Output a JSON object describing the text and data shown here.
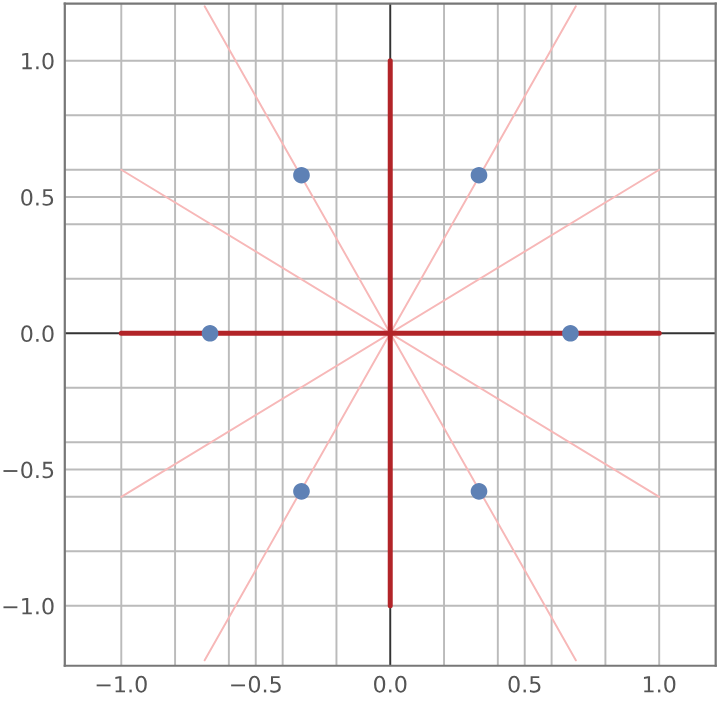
{
  "chart_data": {
    "type": "scatter",
    "xlim": [
      -1.21,
      1.21
    ],
    "ylim": [
      -1.22,
      1.21
    ],
    "xticks": [
      {
        "value": -1.0,
        "label": "−1.0"
      },
      {
        "value": -0.8,
        "label": null
      },
      {
        "value": -0.6,
        "label": null
      },
      {
        "value": -0.5,
        "label": "−0.5"
      },
      {
        "value": -0.4,
        "label": null
      },
      {
        "value": -0.2,
        "label": null
      },
      {
        "value": 0,
        "label": "0.0"
      },
      {
        "value": 0.2,
        "label": null
      },
      {
        "value": 0.4,
        "label": null
      },
      {
        "value": 0.5,
        "label": "0.5"
      },
      {
        "value": 0.6,
        "label": null
      },
      {
        "value": 0.8,
        "label": null
      },
      {
        "value": 1.0,
        "label": "1.0"
      }
    ],
    "yticks": [
      {
        "value": -1.0,
        "label": "−1.0"
      },
      {
        "value": -0.8,
        "label": null
      },
      {
        "value": -0.6,
        "label": null
      },
      {
        "value": -0.5,
        "label": "−0.5"
      },
      {
        "value": -0.4,
        "label": null
      },
      {
        "value": -0.2,
        "label": null
      },
      {
        "value": 0,
        "label": "0.0"
      },
      {
        "value": 0.2,
        "label": null
      },
      {
        "value": 0.4,
        "label": null
      },
      {
        "value": 0.5,
        "label": "0.5"
      },
      {
        "value": 0.6,
        "label": null
      },
      {
        "value": 0.8,
        "label": null
      },
      {
        "value": 1.0,
        "label": "1.0"
      }
    ],
    "grid": true,
    "series": [
      {
        "type": "line",
        "color": "#f7b8b8",
        "x": [
          -1.0,
          1.0
        ],
        "values": [
          0.6,
          -0.6
        ]
      },
      {
        "type": "line",
        "color": "#f7b8b8",
        "x": [
          -1.0,
          1.0
        ],
        "values": [
          -0.6,
          0.6
        ]
      },
      {
        "type": "line",
        "color": "#f7b8b8",
        "x": [
          -0.69,
          0.69
        ],
        "values": [
          1.2,
          -1.2
        ]
      },
      {
        "type": "line",
        "color": "#f7b8b8",
        "x": [
          -0.69,
          0.69
        ],
        "values": [
          -1.2,
          1.2
        ]
      },
      {
        "type": "line",
        "color": "#b22428",
        "x": [
          -1.0,
          1.0
        ],
        "values": [
          0,
          0
        ]
      },
      {
        "type": "line",
        "color": "#b22428",
        "x": [
          0,
          0
        ],
        "values": [
          -1.0,
          1.0
        ]
      },
      {
        "color": "#5e81b5",
        "marker": "circle",
        "x": [
          0.67,
          0.33,
          -0.33,
          -0.67,
          -0.33,
          0.33
        ],
        "values": [
          0,
          0.58,
          0.58,
          0,
          -0.58,
          -0.58
        ]
      }
    ]
  }
}
